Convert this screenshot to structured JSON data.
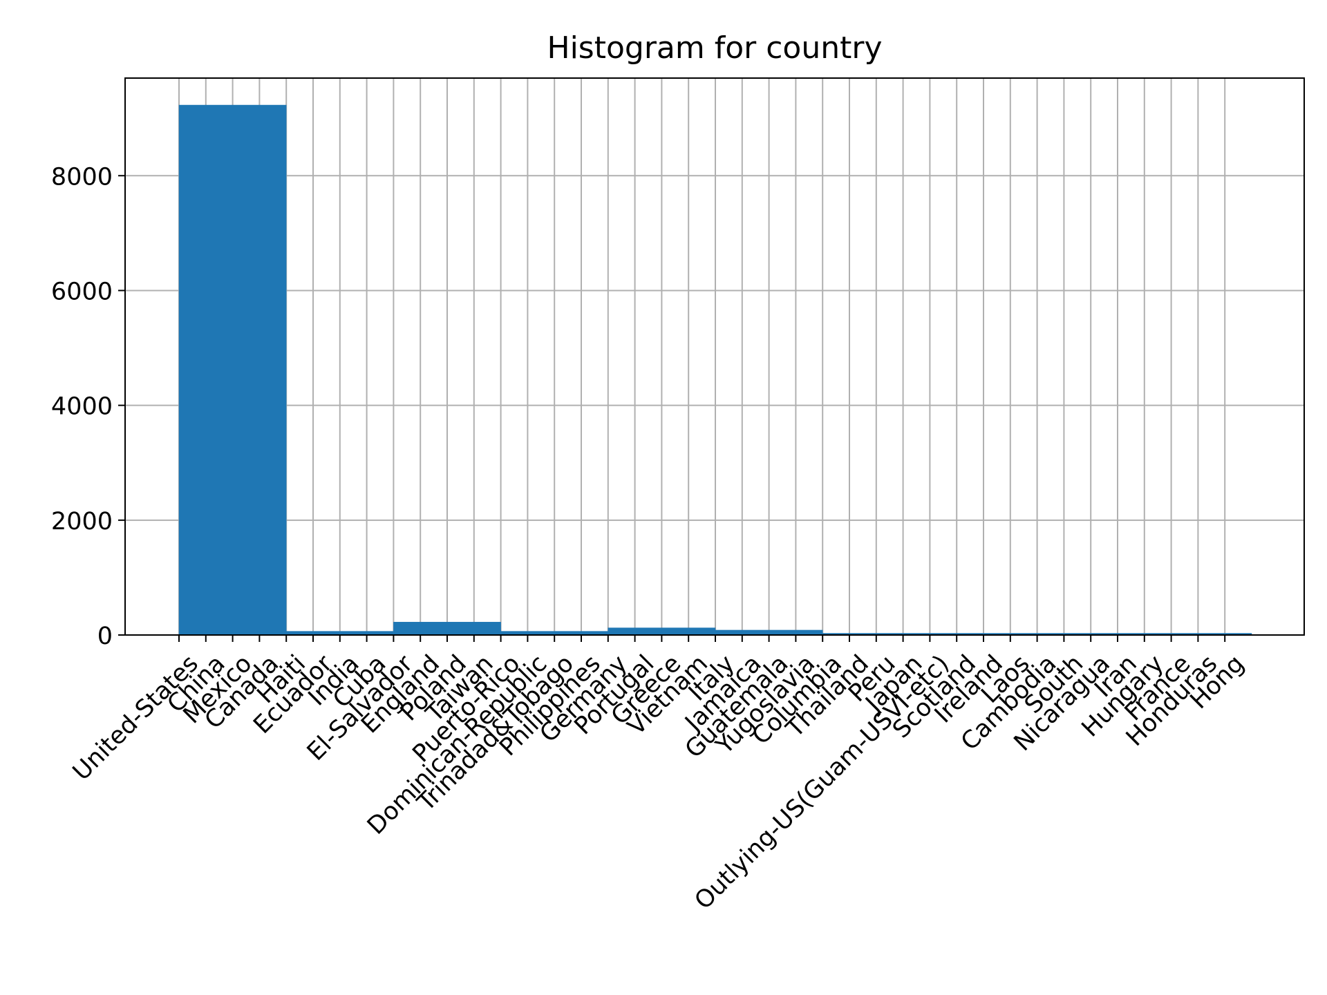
{
  "chart_data": {
    "type": "bar",
    "title": "Histogram for country",
    "xlabel": "",
    "ylabel": "",
    "ylim": [
      0,
      9700
    ],
    "yticks": [
      0,
      2000,
      4000,
      6000,
      8000
    ],
    "grid": true,
    "bar_color": "#1f77b4",
    "grid_color": "#b0b0b0",
    "bins": [
      {
        "start": 0,
        "end": 4,
        "value": 9230
      },
      {
        "start": 4,
        "end": 8,
        "value": 65
      },
      {
        "start": 8,
        "end": 12,
        "value": 225
      },
      {
        "start": 12,
        "end": 16,
        "value": 65
      },
      {
        "start": 16,
        "end": 20,
        "value": 125
      },
      {
        "start": 20,
        "end": 24,
        "value": 85
      },
      {
        "start": 24,
        "end": 28,
        "value": 30
      },
      {
        "start": 28,
        "end": 32,
        "value": 30
      },
      {
        "start": 32,
        "end": 36,
        "value": 30
      },
      {
        "start": 36,
        "end": 40,
        "value": 30
      }
    ],
    "x_tick_labels": [
      "United-States",
      "China",
      "Mexico",
      "Canada",
      "Haiti",
      "Ecuador",
      "India",
      "Cuba",
      "El-Salvador",
      "England",
      "Poland",
      "Taiwan",
      "Puerto-Rico",
      "Dominican-Republic",
      "Trinadad&Tobago",
      "Philippines",
      "Germany",
      "Portugal",
      "Greece",
      "Vietnam",
      "Italy",
      "Jamaica",
      "Guatemala",
      "Yugoslavia",
      "Columbia",
      "Thailand",
      "Peru",
      "Japan",
      "Outlying-US(Guam-USVI-etc)",
      "Scotland",
      "Ireland",
      "Laos",
      "Cambodia",
      "South",
      "Nicaragua",
      "Iran",
      "Hungary",
      "France",
      "Honduras",
      "Hong"
    ]
  }
}
